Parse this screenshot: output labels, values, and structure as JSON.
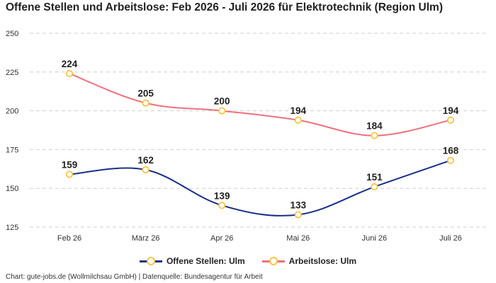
{
  "chart_data": {
    "type": "line",
    "title": "Offene Stellen und Arbeitslose: Feb 2026 - Juli 2026 für Elektrotechnik (Region Ulm)",
    "categories": [
      "Feb 26",
      "März 26",
      "Apr 26",
      "Mai 26",
      "Juni 26",
      "Juli 26"
    ],
    "series": [
      {
        "name": "Offene Stellen: Ulm",
        "values": [
          159,
          162,
          139,
          133,
          151,
          168
        ],
        "color": "#1a2f8a"
      },
      {
        "name": "Arbeitslose: Ulm",
        "values": [
          224,
          205,
          200,
          194,
          184,
          194
        ],
        "color": "#f0707f"
      }
    ],
    "yticks": [
      125,
      150,
      175,
      200,
      225,
      250
    ],
    "ylim": [
      125,
      250
    ],
    "grid": true,
    "legend_position": "bottom-center",
    "marker_color": "#f5c542"
  },
  "footer": "Chart: gute-jobs.de (Wollmilchsau GmbH) | Datenquelle: Bundesagentur für Arbeit"
}
